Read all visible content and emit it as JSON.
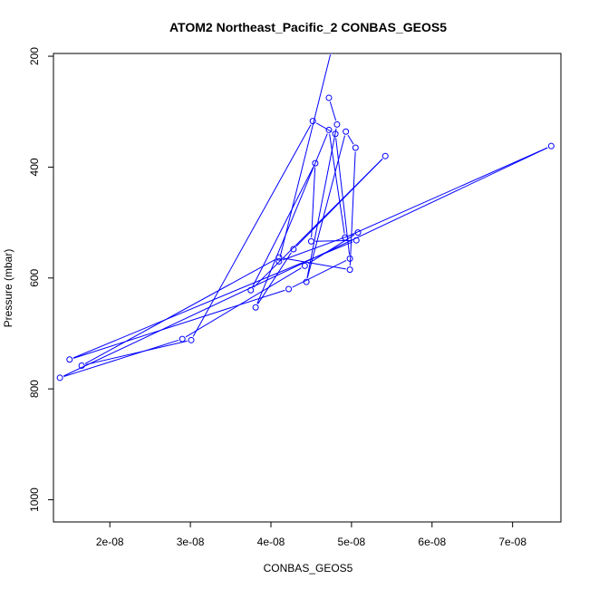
{
  "chart_data": {
    "type": "line",
    "title": "ATOM2 Northeast_Pacific_2 CONBAS_GEOS5",
    "xlabel": "CONBAS_GEOS5",
    "ylabel": "Pressure (mbar)",
    "xlim": [
      1.3e-08,
      7.6e-08
    ],
    "ylim": [
      1040,
      195
    ],
    "y_reversed": true,
    "grid": false,
    "x_ticks": [
      {
        "value": 2e-08,
        "label": "2e-08"
      },
      {
        "value": 3e-08,
        "label": "3e-08"
      },
      {
        "value": 4e-08,
        "label": "4e-08"
      },
      {
        "value": 5e-08,
        "label": "5e-08"
      },
      {
        "value": 6e-08,
        "label": "6e-08"
      },
      {
        "value": 7e-08,
        "label": "7e-08"
      }
    ],
    "y_ticks": [
      {
        "value": 200,
        "label": "200"
      },
      {
        "value": 400,
        "label": "400"
      },
      {
        "value": 600,
        "label": "600"
      },
      {
        "value": 800,
        "label": "800"
      },
      {
        "value": 1000,
        "label": "1000"
      }
    ],
    "series": [
      {
        "color": "#0000ff",
        "marker": "open-circle",
        "x": [
          4.72e-08,
          4.82e-08,
          4.44e-08,
          4.93e-08,
          5.05e-08,
          4.98e-08,
          4.1e-08,
          1.65e-08,
          3.01e-08,
          4.52e-08,
          4.8e-08,
          4.98e-08,
          4.22e-08,
          1.5e-08,
          5.06e-08,
          4.5e-08,
          4.55e-08,
          3.75e-08,
          5.42e-08,
          4.28e-08,
          3.81e-08,
          4.72e-08,
          4.92e-08,
          7.48e-08,
          1.38e-08,
          2.9e-08,
          4.42e-08,
          5.08e-08,
          4.1e-08,
          4.75e-08
        ],
        "y": [
          275,
          323,
          607,
          336,
          365,
          585,
          563,
          758,
          712,
          317,
          340,
          565,
          620,
          747,
          532,
          534,
          393,
          622,
          380,
          548,
          653,
          333,
          527,
          362,
          780,
          710,
          578,
          518,
          570,
          190
        ]
      }
    ]
  }
}
